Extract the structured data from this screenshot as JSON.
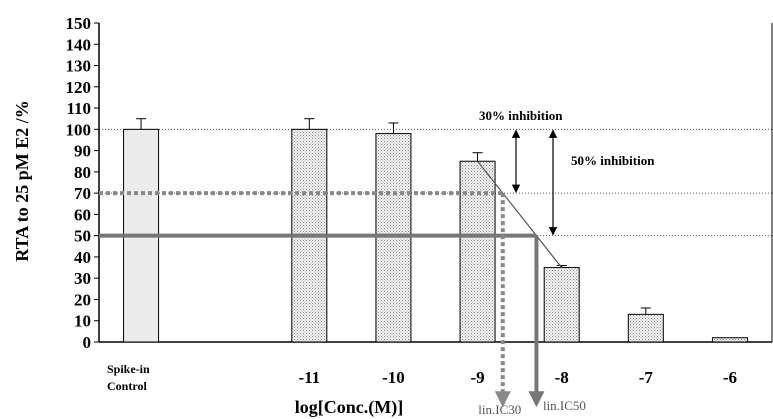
{
  "chart_data": {
    "type": "bar",
    "title": "",
    "ylabel": "RTA to 25 pM E2 /%",
    "xlabel": "log[Conc.(M)]",
    "ylim": [
      0,
      150
    ],
    "yticks": [
      0,
      10,
      20,
      30,
      40,
      50,
      60,
      70,
      80,
      90,
      100,
      110,
      120,
      130,
      140,
      150
    ],
    "grid": {
      "y_dotted_at": [
        100,
        70,
        50
      ]
    },
    "categories": [
      "Spike-in Control",
      "",
      "-11",
      "-10",
      "-9",
      "-8",
      "-7",
      "-6"
    ],
    "control_label_lines": [
      "Spike-in",
      "Control"
    ],
    "values": [
      100,
      null,
      100,
      98,
      85,
      35,
      13,
      2
    ],
    "errors": [
      5,
      null,
      5,
      5,
      4,
      1,
      3,
      0
    ],
    "control_color": "#ececec",
    "bar_color": "#e4e4e4",
    "reference_lines": [
      {
        "value": 70,
        "style": "dashed",
        "color": "#888888"
      },
      {
        "value": 50,
        "style": "solid",
        "color": "#777777"
      }
    ],
    "fit_segment": {
      "from": {
        "x": "-9",
        "y": 85
      },
      "to": {
        "x": "-8",
        "y": 35
      }
    },
    "inhibition_arrows": [
      {
        "label": "30% inhibition",
        "from": 100,
        "to": 70
      },
      {
        "label": "50% inhibition",
        "from": 100,
        "to": 50
      }
    ],
    "ic_markers": [
      {
        "label": "lin.IC30",
        "level": 70,
        "style": "dashed",
        "color": "#888888"
      },
      {
        "label": "lin.IC50",
        "level": 50,
        "style": "solid",
        "color": "#777777"
      }
    ]
  }
}
